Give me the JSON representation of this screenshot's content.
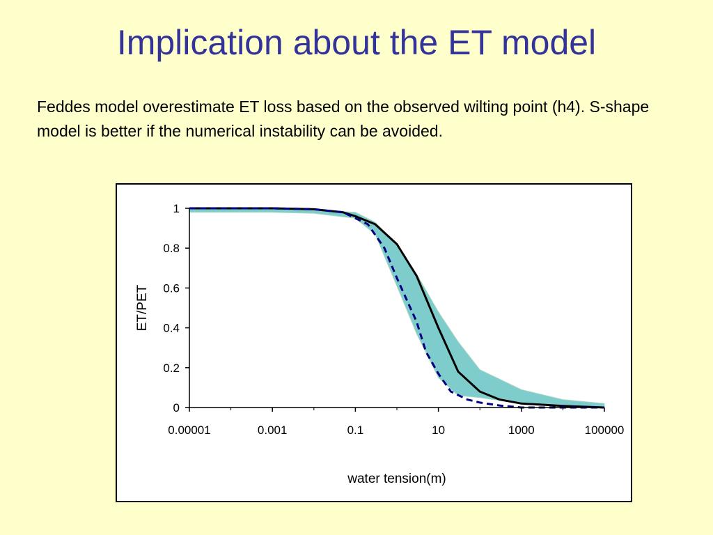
{
  "slide": {
    "title": "Implication about the ET model",
    "text": "Feddes model overestimate ET loss based on the observed wilting point (h4). S-shape model is better if the numerical instability can be avoided."
  },
  "colors": {
    "background": "#ffffcc",
    "title": "#333399",
    "band_fill": "#7fcccc",
    "band_stroke": "#a8d8c0",
    "line_solid": "#000000",
    "line_dashed": "#000080"
  },
  "chart_data": {
    "type": "line",
    "title": "",
    "xlabel": "water tension(m)",
    "ylabel": "ET/PET",
    "xscale": "log",
    "xlim": [
      1e-05,
      100000
    ],
    "ylim": [
      0,
      1
    ],
    "xticks": [
      "0.00001",
      "0.001",
      "0.1",
      "10",
      "1000",
      "100000"
    ],
    "yticks": [
      "0",
      "0.2",
      "0.4",
      "0.6",
      "0.8",
      "1"
    ],
    "grid": false,
    "legend": "none",
    "band": {
      "upper": [
        [
          1e-05,
          1.0
        ],
        [
          0.001,
          1.0
        ],
        [
          0.01,
          0.99
        ],
        [
          0.1,
          0.98
        ],
        [
          0.3,
          0.93
        ],
        [
          1,
          0.82
        ],
        [
          3,
          0.67
        ],
        [
          10,
          0.48
        ],
        [
          30,
          0.33
        ],
        [
          100,
          0.19
        ],
        [
          1000,
          0.09
        ],
        [
          10000,
          0.04
        ],
        [
          100000,
          0.02
        ]
      ],
      "lower": [
        [
          1e-05,
          0.98
        ],
        [
          0.001,
          0.98
        ],
        [
          0.01,
          0.975
        ],
        [
          0.1,
          0.95
        ],
        [
          0.3,
          0.87
        ],
        [
          1,
          0.61
        ],
        [
          3,
          0.37
        ],
        [
          10,
          0.15
        ],
        [
          30,
          0.06
        ],
        [
          100,
          0.05
        ],
        [
          1000,
          0.02
        ],
        [
          10000,
          0.01
        ],
        [
          100000,
          0.0
        ]
      ]
    },
    "series": [
      {
        "style": "solid",
        "points": [
          [
            1e-05,
            1.0
          ],
          [
            0.001,
            1.0
          ],
          [
            0.01,
            0.995
          ],
          [
            0.05,
            0.98
          ],
          [
            0.1,
            0.96
          ],
          [
            0.3,
            0.92
          ],
          [
            1,
            0.82
          ],
          [
            3,
            0.66
          ],
          [
            10,
            0.4
          ],
          [
            30,
            0.18
          ],
          [
            100,
            0.08
          ],
          [
            300,
            0.04
          ],
          [
            1000,
            0.02
          ],
          [
            10000,
            0.008
          ],
          [
            100000,
            0.0
          ]
        ]
      },
      {
        "style": "dashed",
        "points": [
          [
            1e-05,
            1.0
          ],
          [
            0.001,
            1.0
          ],
          [
            0.01,
            0.995
          ],
          [
            0.05,
            0.98
          ],
          [
            0.1,
            0.95
          ],
          [
            0.2,
            0.92
          ],
          [
            0.5,
            0.8
          ],
          [
            1,
            0.65
          ],
          [
            3,
            0.43
          ],
          [
            5,
            0.28
          ],
          [
            10,
            0.17
          ],
          [
            20,
            0.08
          ],
          [
            50,
            0.04
          ],
          [
            100,
            0.025
          ],
          [
            300,
            0.01
          ],
          [
            1000,
            0.0
          ],
          [
            100000,
            0.0
          ]
        ]
      }
    ]
  }
}
